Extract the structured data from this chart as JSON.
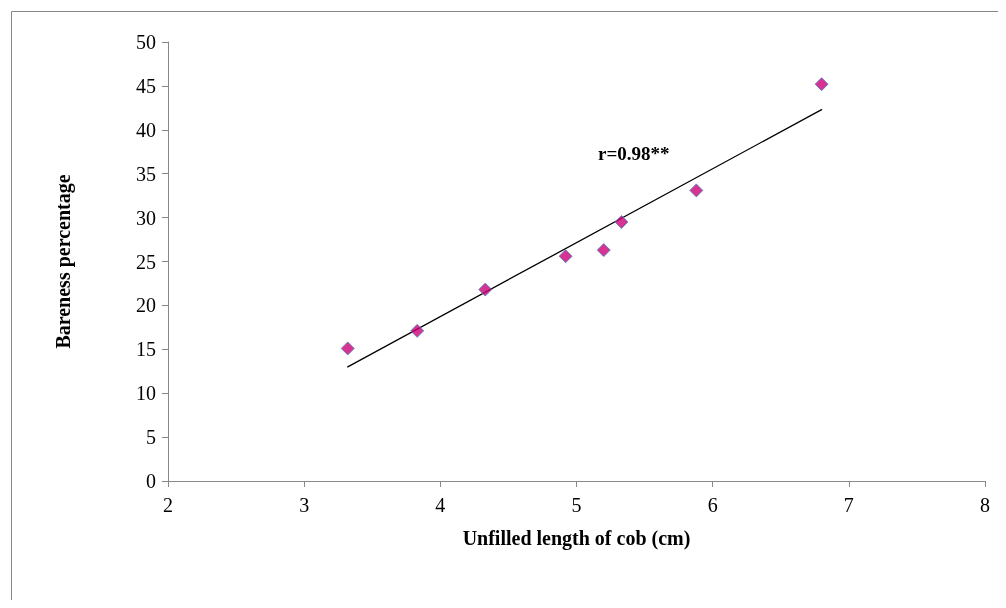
{
  "chart_data": {
    "type": "scatter",
    "xlabel": "Unfilled length of cob (cm)",
    "ylabel": "Bareness percentage",
    "annotations": [
      "r=0.98**"
    ],
    "xlim": [
      2,
      8
    ],
    "xticks": [
      2,
      3,
      4,
      5,
      6,
      7,
      8
    ],
    "ylim": [
      0,
      50
    ],
    "yticks": [
      0,
      5,
      10,
      15,
      20,
      25,
      30,
      35,
      40,
      45,
      50
    ],
    "grid": false,
    "marker": "diamond",
    "series": [
      {
        "color": "#cc0077",
        "x": [
          3.32,
          3.83,
          4.33,
          4.92,
          5.2,
          5.33,
          5.88,
          6.8
        ],
        "values": [
          15.1,
          17.1,
          21.8,
          25.6,
          26.3,
          29.5,
          33.1,
          45.2
        ]
      },
      {
        "type": "line",
        "color": "#000000",
        "marker": "none",
        "line_style": "solid",
        "x": [
          3.32,
          6.8
        ],
        "values": [
          13.0,
          42.3
        ]
      }
    ]
  }
}
